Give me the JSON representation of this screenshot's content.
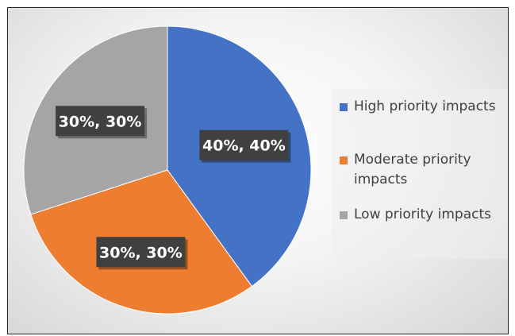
{
  "chart_data": {
    "type": "pie",
    "categories": [
      "High priority impacts",
      "Moderate priority impacts",
      "Low priority impacts"
    ],
    "values": [
      40,
      30,
      30
    ],
    "data_labels": [
      "40%, 40%",
      "30%, 30%",
      "30%, 30%"
    ],
    "colors": [
      "#4472C4",
      "#ED7D31",
      "#A5A5A5"
    ],
    "start_angle": "12 o'clock",
    "direction": "clockwise",
    "legend": "right"
  }
}
